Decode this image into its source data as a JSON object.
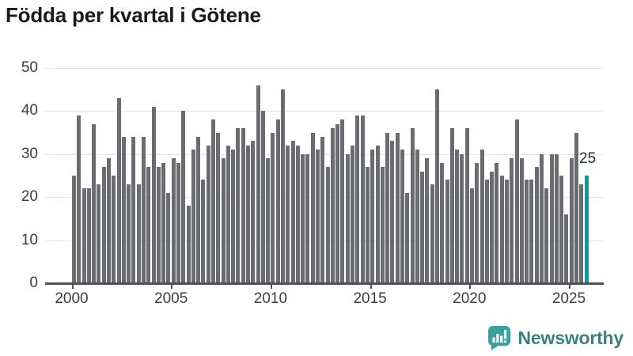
{
  "title": "Födda per kvartal i Götene",
  "colors": {
    "bar": "#6b6b72",
    "highlight": "#00a09a",
    "grid": "#e5e5e5",
    "axis": "#4f4f56",
    "tick_text": "#3d3d44",
    "title_text": "#1a1a1a",
    "brand_text": "#3a8280",
    "logo": "#3aa29c"
  },
  "chart_data": {
    "type": "bar",
    "title": "Födda per kvartal i Götene",
    "frequency": "quarterly",
    "x_start": "2000 Q1",
    "x_end": "2025 Q4",
    "xlabel": "",
    "ylabel": "",
    "ylim": [
      0,
      50
    ],
    "y_ticks": [
      0,
      10,
      20,
      30,
      40,
      50
    ],
    "x_tick_labels": [
      "2000",
      "2005",
      "2010",
      "2015",
      "2020",
      "2025"
    ],
    "grid": "horizontal",
    "legend": false,
    "data": [
      {
        "year": 2000,
        "values": [
          25,
          39,
          22,
          22
        ]
      },
      {
        "year": 2001,
        "values": [
          37,
          23,
          27,
          29
        ]
      },
      {
        "year": 2002,
        "values": [
          25,
          43,
          34,
          23
        ]
      },
      {
        "year": 2003,
        "values": [
          34,
          23,
          34,
          27
        ]
      },
      {
        "year": 2004,
        "values": [
          41,
          27,
          28,
          21
        ]
      },
      {
        "year": 2005,
        "values": [
          29,
          28,
          40,
          18
        ]
      },
      {
        "year": 2006,
        "values": [
          31,
          34,
          24,
          32
        ]
      },
      {
        "year": 2007,
        "values": [
          38,
          35,
          29,
          32
        ]
      },
      {
        "year": 2008,
        "values": [
          31,
          36,
          36,
          32
        ]
      },
      {
        "year": 2009,
        "values": [
          33,
          46,
          40,
          29
        ]
      },
      {
        "year": 2010,
        "values": [
          35,
          38,
          45,
          32
        ]
      },
      {
        "year": 2011,
        "values": [
          33,
          32,
          30,
          30
        ]
      },
      {
        "year": 2012,
        "values": [
          35,
          31,
          34,
          27
        ]
      },
      {
        "year": 2013,
        "values": [
          36,
          37,
          38,
          30
        ]
      },
      {
        "year": 2014,
        "values": [
          32,
          39,
          39,
          27
        ]
      },
      {
        "year": 2015,
        "values": [
          31,
          32,
          27,
          35
        ]
      },
      {
        "year": 2016,
        "values": [
          33,
          35,
          31,
          21
        ]
      },
      {
        "year": 2017,
        "values": [
          36,
          31,
          26,
          29
        ]
      },
      {
        "year": 2018,
        "values": [
          23,
          45,
          28,
          24
        ]
      },
      {
        "year": 2019,
        "values": [
          36,
          31,
          30,
          36
        ]
      },
      {
        "year": 2020,
        "values": [
          22,
          28,
          31,
          24
        ]
      },
      {
        "year": 2021,
        "values": [
          26,
          28,
          25,
          24
        ]
      },
      {
        "year": 2022,
        "values": [
          29,
          38,
          29,
          24
        ]
      },
      {
        "year": 2023,
        "values": [
          24,
          27,
          30,
          22
        ]
      },
      {
        "year": 2024,
        "values": [
          30,
          30,
          25,
          16
        ]
      },
      {
        "year": 2025,
        "values": [
          29,
          35,
          23,
          25
        ]
      }
    ],
    "highlight_last": {
      "category": "2025 Q4",
      "value": 25,
      "label": "25"
    }
  },
  "footer": {
    "brand": "Newsworthy",
    "icon": "newsworthy-logo"
  }
}
